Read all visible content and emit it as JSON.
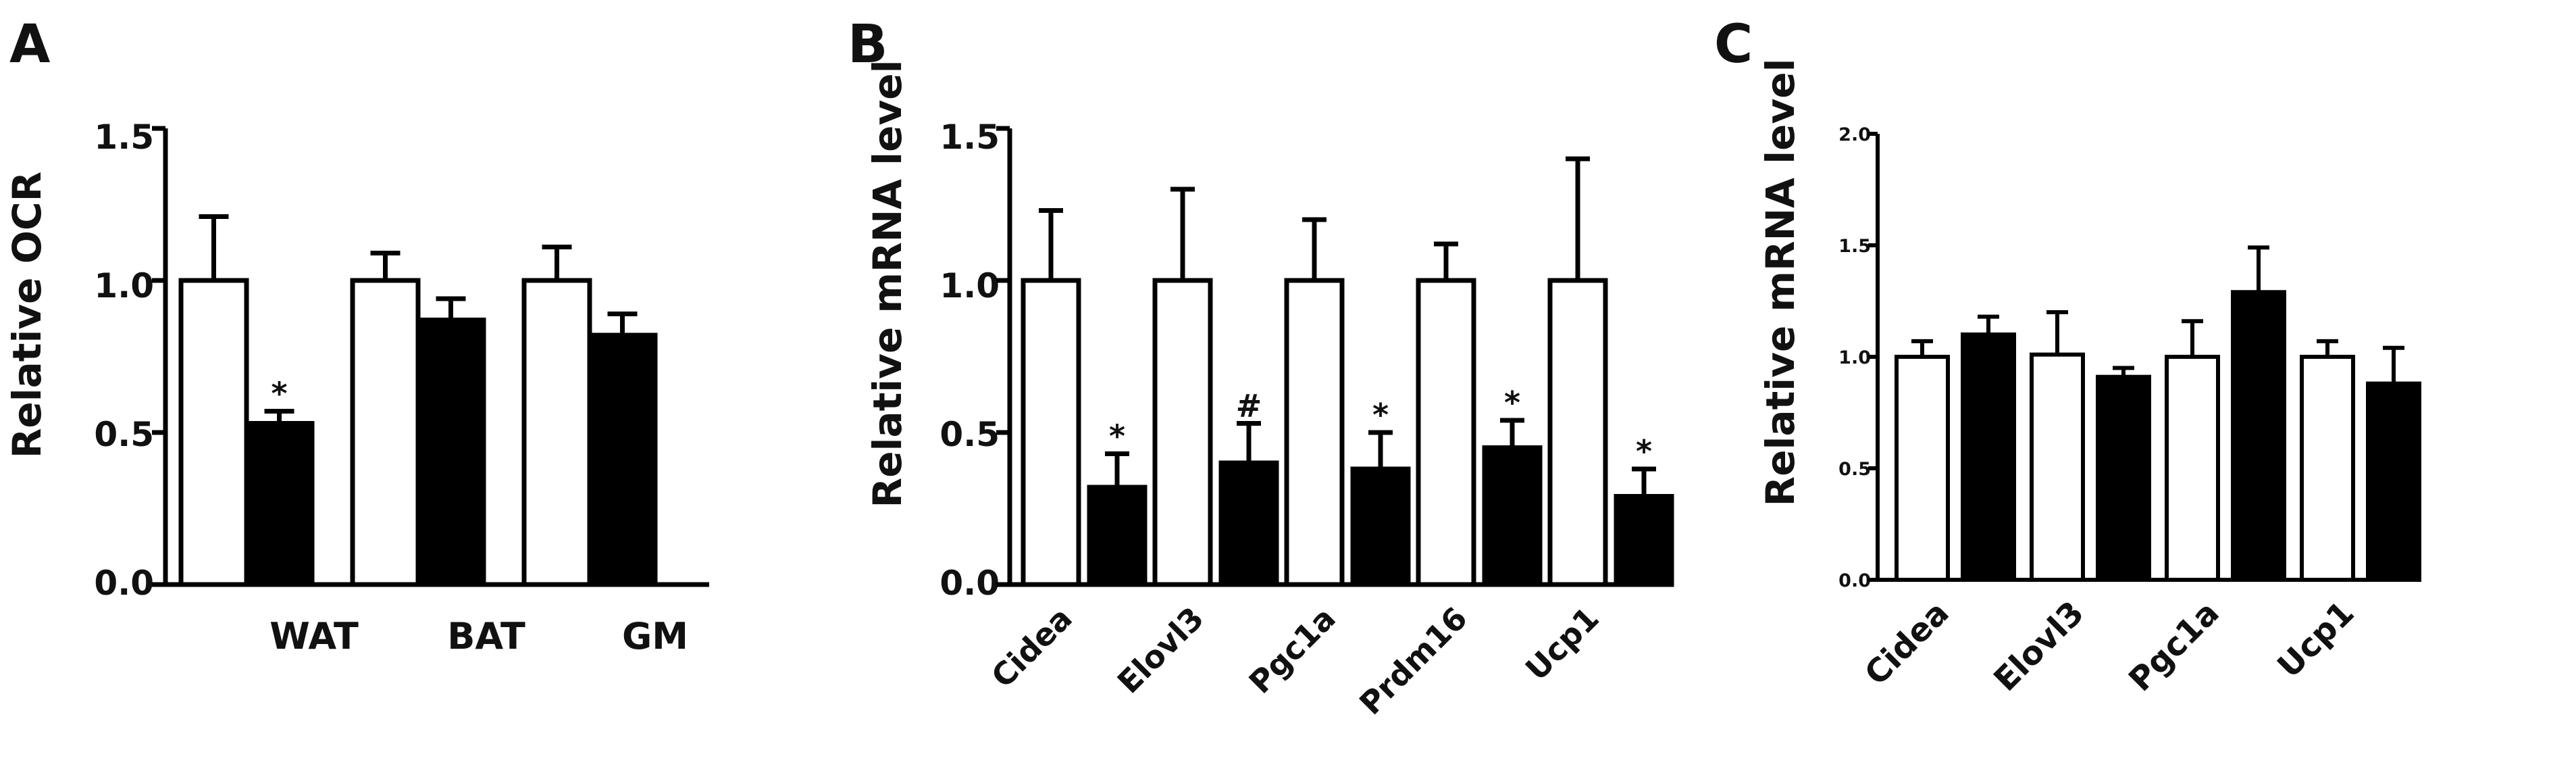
{
  "chart_data": [
    {
      "panel": "A",
      "type": "bar",
      "ylabel": "Relative OCR",
      "ylim": [
        0,
        1.5
      ],
      "yticks": [
        "0.0",
        "0.5",
        "1.0",
        "1.5"
      ],
      "categories": [
        "WAT",
        "BAT",
        "GM"
      ],
      "series": [
        {
          "color": "#ffffff",
          "values": [
            1.0,
            1.0,
            1.0
          ],
          "errors": [
            0.21,
            0.09,
            0.11
          ],
          "marks": [
            "",
            "",
            ""
          ]
        },
        {
          "color": "#000000",
          "values": [
            0.53,
            0.87,
            0.82
          ],
          "errors": [
            0.04,
            0.07,
            0.07
          ],
          "marks": [
            "*",
            "",
            ""
          ]
        }
      ]
    },
    {
      "panel": "B",
      "type": "bar",
      "ylabel": "Relative mRNA level",
      "ylim": [
        0,
        1.5
      ],
      "yticks": [
        "0.0",
        "0.5",
        "1.0",
        "1.5"
      ],
      "categories": [
        "Cidea",
        "Elovl3",
        "Pgc1a",
        "Prdm16",
        "Ucp1"
      ],
      "series": [
        {
          "color": "#ffffff",
          "values": [
            1.0,
            1.0,
            1.0,
            1.0,
            1.0
          ],
          "errors": [
            0.23,
            0.3,
            0.2,
            0.12,
            0.4
          ],
          "marks": [
            "",
            "",
            "",
            "",
            ""
          ]
        },
        {
          "color": "#000000",
          "values": [
            0.32,
            0.4,
            0.38,
            0.45,
            0.29
          ],
          "errors": [
            0.11,
            0.13,
            0.12,
            0.09,
            0.09
          ],
          "marks": [
            "*",
            "#",
            "*",
            "*",
            "*"
          ]
        }
      ]
    },
    {
      "panel": "C",
      "type": "bar",
      "ylabel": "Relative mRNA level",
      "ylim": [
        0,
        2.0
      ],
      "yticks": [
        "0.0",
        "0.5",
        "1.0",
        "1.5",
        "2.0"
      ],
      "categories": [
        "Cidea",
        "Elovl3",
        "Pgc1a",
        "Ucp1"
      ],
      "series": [
        {
          "color": "#ffffff",
          "values": [
            1.0,
            1.01,
            1.0,
            1.0
          ],
          "errors": [
            0.07,
            0.19,
            0.16,
            0.07
          ],
          "marks": [
            "",
            "",
            "",
            ""
          ]
        },
        {
          "color": "#000000",
          "values": [
            1.1,
            0.91,
            1.29,
            0.88
          ],
          "errors": [
            0.08,
            0.04,
            0.2,
            0.16
          ],
          "marks": [
            "",
            "",
            "",
            ""
          ]
        }
      ]
    }
  ]
}
